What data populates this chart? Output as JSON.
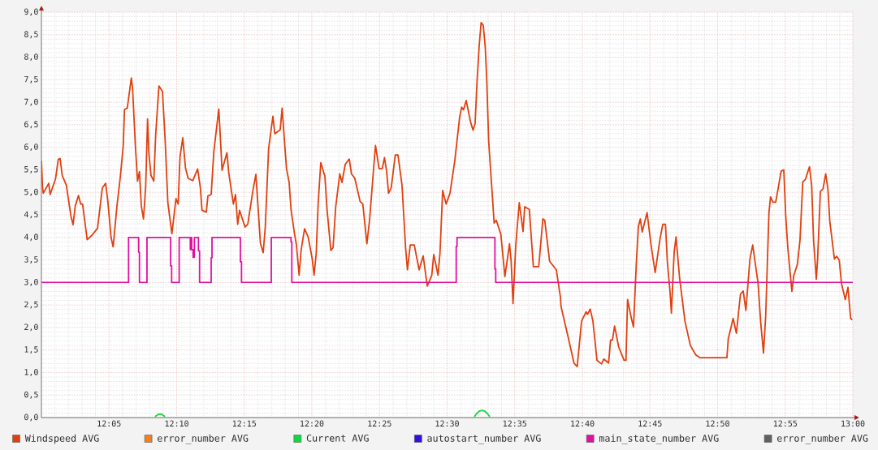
{
  "chart_data": {
    "type": "line",
    "xlim": [
      12,
      13
    ],
    "ylim": [
      0,
      9
    ],
    "xticks": [
      {
        "value": 12.0833,
        "label": "12:05"
      },
      {
        "value": 12.1667,
        "label": "12:10"
      },
      {
        "value": 12.25,
        "label": "12:15"
      },
      {
        "value": 12.3333,
        "label": "12:20"
      },
      {
        "value": 12.4167,
        "label": "12:25"
      },
      {
        "value": 12.5,
        "label": "12:30"
      },
      {
        "value": 12.5833,
        "label": "12:35"
      },
      {
        "value": 12.6667,
        "label": "12:40"
      },
      {
        "value": 12.75,
        "label": "12:45"
      },
      {
        "value": 12.8333,
        "label": "12:50"
      },
      {
        "value": 12.9167,
        "label": "12:55"
      },
      {
        "value": 13,
        "label": "13:00"
      }
    ],
    "yticks": [
      {
        "value": 0,
        "label": "0,0"
      },
      {
        "value": 0.5,
        "label": "0,5"
      },
      {
        "value": 1,
        "label": "1,0"
      },
      {
        "value": 1.5,
        "label": "1,5"
      },
      {
        "value": 2,
        "label": "2,0"
      },
      {
        "value": 2.5,
        "label": "2,5"
      },
      {
        "value": 3,
        "label": "3,0"
      },
      {
        "value": 3.5,
        "label": "3,5"
      },
      {
        "value": 4,
        "label": "4,0"
      },
      {
        "value": 4.5,
        "label": "4,5"
      },
      {
        "value": 5,
        "label": "5,0"
      },
      {
        "value": 5.5,
        "label": "5,5"
      },
      {
        "value": 6,
        "label": "6,0"
      },
      {
        "value": 6.5,
        "label": "6,5"
      },
      {
        "value": 7,
        "label": "7,0"
      },
      {
        "value": 7.5,
        "label": "7,5"
      },
      {
        "value": 8,
        "label": "8,0"
      },
      {
        "value": 8.5,
        "label": "8,5"
      },
      {
        "value": 9,
        "label": "9,0"
      }
    ],
    "grid": true,
    "legend": "bottom",
    "marker": "none",
    "line_style": "solid",
    "series": [
      {
        "name": "Windspeed AVG",
        "color": "#e04010",
        "x": [
          12.0,
          12.0013,
          12.0023,
          12.009,
          12.0107,
          12.0174,
          12.0207,
          12.023,
          12.0257,
          12.0307,
          12.0364,
          12.039,
          12.0417,
          12.0457,
          12.0484,
          12.0507,
          12.0564,
          12.0624,
          12.0691,
          12.0751,
          12.0791,
          12.0817,
          12.0858,
          12.0884,
          12.0931,
          12.0974,
          12.1008,
          12.1024,
          12.1058,
          12.1108,
          12.1124,
          12.1158,
          12.1185,
          12.1208,
          12.1231,
          12.1258,
          12.1285,
          12.1308,
          12.1325,
          12.1351,
          12.1385,
          12.1408,
          12.1448,
          12.1492,
          12.1525,
          12.1558,
          12.1608,
          12.1658,
          12.1685,
          12.1708,
          12.1742,
          12.1775,
          12.1808,
          12.1865,
          12.1925,
          12.1959,
          12.1979,
          12.2032,
          12.2052,
          12.2092,
          12.2125,
          12.2186,
          12.2209,
          12.2226,
          12.2286,
          12.2309,
          12.2366,
          12.2392,
          12.2419,
          12.2442,
          12.2509,
          12.2543,
          12.2609,
          12.2643,
          12.2699,
          12.2733,
          12.2759,
          12.28,
          12.2853,
          12.2876,
          12.2943,
          12.2966,
          12.302,
          12.3053,
          12.3076,
          12.312,
          12.3143,
          12.3176,
          12.32,
          12.3243,
          12.3287,
          12.3337,
          12.336,
          12.3387,
          12.341,
          12.3443,
          12.3494,
          12.352,
          12.3567,
          12.3594,
          12.3627,
          12.3677,
          12.3704,
          12.3744,
          12.3794,
          12.3821,
          12.3861,
          12.3927,
          12.3961,
          12.4011,
          12.4044,
          12.4094,
          12.4117,
          12.4161,
          12.4201,
          12.4228,
          12.4254,
          12.4278,
          12.4311,
          12.4361,
          12.4394,
          12.4444,
          12.4488,
          12.4511,
          12.4545,
          12.4595,
          12.4655,
          12.4705,
          12.4728,
          12.4755,
          12.4811,
          12.4835,
          12.4888,
          12.4912,
          12.4945,
          12.4988,
          12.5035,
          12.5095,
          12.5155,
          12.5179,
          12.5202,
          12.5235,
          12.5289,
          12.5319,
          12.5345,
          12.5369,
          12.5395,
          12.5419,
          12.5445,
          12.5469,
          12.5489,
          12.5512,
          12.5562,
          12.5579,
          12.5606,
          12.5662,
          12.5712,
          12.5769,
          12.5789,
          12.5812,
          12.5846,
          12.5889,
          12.5936,
          12.5956,
          12.6013,
          12.6063,
          12.6129,
          12.618,
          12.6203,
          12.6263,
          12.6346,
          12.6396,
          12.6403,
          12.6496,
          12.6563,
          12.6603,
          12.6657,
          12.6713,
          12.673,
          12.6763,
          12.6797,
          12.6847,
          12.6903,
          12.693,
          12.699,
          12.7014,
          12.7037,
          12.7064,
          12.7114,
          12.7181,
          12.7204,
          12.7224,
          12.7271,
          12.7297,
          12.7331,
          12.7357,
          12.7381,
          12.7404,
          12.7464,
          12.7514,
          12.7564,
          12.7624,
          12.7658,
          12.7691,
          12.7714,
          12.7748,
          12.7764,
          12.7798,
          12.7821,
          12.7865,
          12.7931,
          12.7998,
          12.8065,
          12.8115,
          12.8448,
          12.8465,
          12.8525,
          12.8565,
          12.8615,
          12.8649,
          12.8682,
          12.8732,
          12.8766,
          12.8832,
          12.8866,
          12.8899,
          12.8926,
          12.8966,
          12.8986,
          12.9016,
          12.9049,
          12.9082,
          12.9116,
          12.9149,
          12.9173,
          12.9199,
          12.9249,
          12.9273,
          12.9316,
          12.9349,
          12.9383,
          12.9416,
          12.9466,
          12.9493,
          12.9516,
          12.955,
          12.9566,
          12.96,
          12.9633,
          12.9666,
          12.9693,
          12.9716,
          12.9773,
          12.98,
          12.9833,
          12.986,
          12.9907,
          12.994,
          12.9973,
          12.9993
        ],
        "values": [
          5.7,
          5.13,
          4.98,
          5.2,
          4.95,
          5.3,
          5.73,
          5.75,
          5.37,
          5.16,
          4.47,
          4.28,
          4.7,
          4.93,
          4.74,
          4.74,
          3.95,
          4.05,
          4.2,
          5.1,
          5.2,
          4.83,
          4.0,
          3.79,
          4.7,
          5.37,
          6.03,
          6.84,
          6.87,
          7.54,
          7.29,
          6.03,
          5.25,
          5.46,
          4.7,
          4.41,
          5.13,
          6.63,
          5.85,
          5.37,
          5.25,
          6.27,
          7.36,
          7.24,
          6.15,
          4.77,
          4.08,
          4.86,
          4.74,
          5.79,
          6.21,
          5.55,
          5.31,
          5.26,
          5.52,
          5.1,
          4.6,
          4.56,
          4.92,
          4.95,
          5.91,
          6.85,
          6.09,
          5.49,
          5.88,
          5.43,
          4.74,
          4.95,
          4.29,
          4.6,
          4.23,
          4.29,
          5.07,
          5.4,
          3.87,
          3.66,
          4.23,
          5.97,
          6.69,
          6.3,
          6.39,
          6.87,
          5.53,
          5.22,
          4.62,
          4.07,
          3.83,
          3.16,
          3.71,
          4.19,
          4.01,
          3.53,
          3.16,
          3.65,
          4.74,
          5.66,
          5.35,
          4.62,
          3.71,
          3.77,
          4.68,
          5.41,
          5.22,
          5.62,
          5.74,
          5.41,
          5.32,
          4.8,
          4.74,
          3.86,
          4.38,
          5.53,
          6.04,
          5.53,
          5.53,
          5.77,
          5.47,
          4.98,
          5.1,
          5.83,
          5.83,
          5.16,
          3.77,
          3.28,
          3.83,
          3.83,
          3.28,
          3.59,
          3.28,
          2.92,
          3.16,
          3.62,
          3.16,
          3.65,
          5.04,
          4.74,
          4.98,
          5.71,
          6.68,
          6.89,
          6.83,
          7.04,
          6.56,
          6.38,
          6.53,
          7.47,
          8.25,
          8.77,
          8.71,
          8.25,
          7.47,
          6.13,
          4.8,
          4.32,
          4.38,
          4.07,
          3.13,
          3.86,
          3.47,
          2.53,
          3.83,
          4.77,
          4.13,
          4.68,
          4.62,
          3.35,
          3.35,
          4.41,
          4.38,
          3.47,
          3.28,
          2.68,
          2.47,
          1.75,
          1.21,
          1.13,
          2.14,
          2.35,
          2.29,
          2.41,
          2.14,
          1.27,
          1.19,
          1.3,
          1.21,
          1.72,
          1.72,
          2.03,
          1.57,
          1.27,
          1.27,
          2.62,
          2.2,
          2.01,
          3.4,
          4.24,
          4.41,
          4.12,
          4.55,
          3.82,
          3.22,
          3.97,
          4.29,
          4.29,
          3.46,
          2.77,
          2.32,
          3.67,
          4.01,
          3.1,
          2.14,
          1.6,
          1.39,
          1.33,
          1.33,
          1.75,
          2.2,
          1.87,
          2.74,
          2.81,
          2.38,
          3.52,
          3.83,
          2.98,
          2.08,
          1.43,
          2.26,
          4.54,
          4.9,
          4.78,
          4.78,
          5.11,
          5.47,
          5.5,
          4.48,
          3.76,
          2.8,
          3.16,
          3.4,
          3.94,
          5.23,
          5.29,
          5.57,
          5.14,
          3.94,
          3.07,
          3.52,
          5.02,
          5.08,
          5.41,
          5.08,
          4.36,
          3.52,
          3.58,
          3.49,
          2.98,
          2.62,
          2.89,
          2.2,
          2.17
        ]
      },
      {
        "name": "error_number AVG",
        "color": "#f08020"
      },
      {
        "name": "Current AVG",
        "color": "#10d840",
        "x": [
          12.1401,
          12.1421,
          12.1441,
          12.1461,
          12.1481,
          12.1502,
          12.1522,
          12.3,
          12.5335,
          12.5365,
          12.5395,
          12.543,
          12.5465,
          12.5495,
          12.5526
        ],
        "values": [
          0.02,
          0.05,
          0.07,
          0.08,
          0.07,
          0.05,
          0.02,
          null,
          0.02,
          0.09,
          0.14,
          0.16,
          0.14,
          0.09,
          0.02
        ]
      },
      {
        "name": "autostart_number AVG",
        "color": "#3010e0"
      },
      {
        "name": "main_state_number AVG",
        "type": "step",
        "color": "#e010a0",
        "x": [
          12.0,
          12.1074,
          12.1198,
          12.1208,
          12.1301,
          12.1592,
          12.1605,
          12.1698,
          12.1835,
          12.1845,
          12.1852,
          12.1869,
          12.1885,
          12.1935,
          12.1949,
          12.2092,
          12.2102,
          12.2452,
          12.2466,
          12.2833,
          12.3076,
          12.3086,
          12.5112,
          12.5122,
          12.5589,
          12.5599,
          13.0
        ],
        "values": [
          3.0,
          4.0,
          3.67,
          3.0,
          4.0,
          3.37,
          3.0,
          4.0,
          3.73,
          4.0,
          3.73,
          3.56,
          4.0,
          3.7,
          3.0,
          3.55,
          4.0,
          3.46,
          3.0,
          4.0,
          3.9,
          3.0,
          3.8,
          4.0,
          3.3,
          3.0,
          3.0
        ]
      },
      {
        "name": "error_number AVG",
        "color": "#606060"
      }
    ]
  }
}
